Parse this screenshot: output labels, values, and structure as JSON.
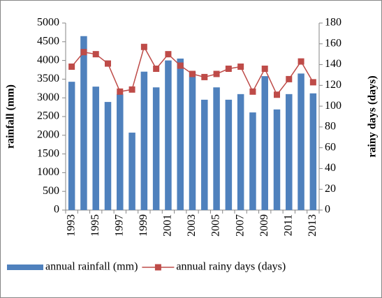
{
  "chart_data": {
    "type": "bar+line",
    "categories": [
      "1993",
      null,
      "1995",
      null,
      "1997",
      null,
      "1999",
      null,
      "2001",
      null,
      "2003",
      null,
      "2005",
      null,
      "2007",
      null,
      "2009",
      null,
      "2011",
      null,
      "2013"
    ],
    "y_label": "rainfall (mm)",
    "y2_label": "rainy days (days)",
    "ylim": [
      0,
      5000
    ],
    "yticks": [
      0,
      500,
      1000,
      1500,
      2000,
      2500,
      3000,
      3500,
      4000,
      4500,
      5000
    ],
    "y2lim": [
      0,
      180
    ],
    "y2ticks": [
      0,
      20,
      40,
      60,
      80,
      100,
      120,
      140,
      160,
      180
    ],
    "legend": "bottom",
    "series": [
      {
        "name": "annual rainfall (mm)",
        "type": "bar",
        "color": "#4f81bd",
        "values": [
          3430,
          4650,
          3300,
          2890,
          3100,
          2070,
          3700,
          3280,
          4000,
          4050,
          3700,
          2950,
          3280,
          2950,
          3100,
          2610,
          3580,
          2690,
          3100,
          3650,
          3120
        ]
      },
      {
        "name": "annual rainy days (days)",
        "type": "line",
        "axis": "y2",
        "color": "#be4b48",
        "values": [
          138,
          152,
          150,
          141,
          114,
          116,
          157,
          136,
          150,
          139,
          131,
          128,
          131,
          136,
          138,
          114,
          136,
          111,
          126,
          143,
          123
        ]
      }
    ]
  }
}
